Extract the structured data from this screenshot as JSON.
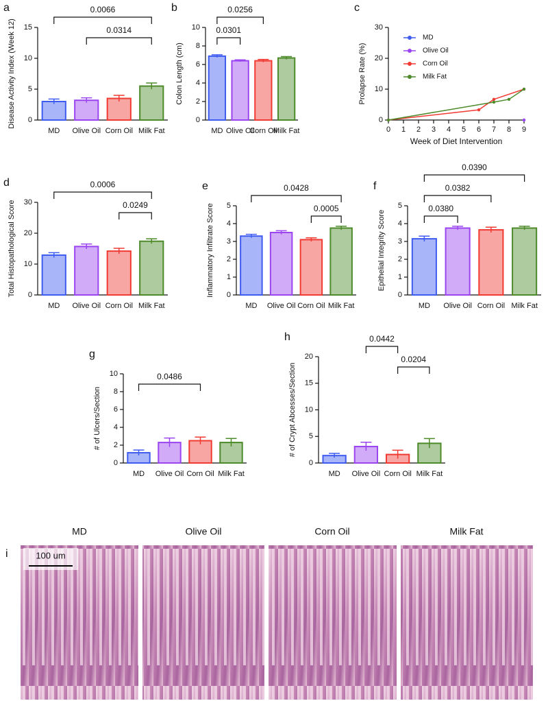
{
  "chart_data": [
    {
      "type": "bar",
      "panel": "a",
      "ylabel": "Disease Activity Index (Week 12)",
      "categories": [
        "MD",
        "Olive Oil",
        "Corn Oil",
        "Milk Fat"
      ],
      "values": [
        3.0,
        3.2,
        3.5,
        5.5
      ],
      "errors": [
        0.4,
        0.4,
        0.5,
        0.5
      ],
      "colors": [
        "#3f5cf0",
        "#9b45f0",
        "#f03a32",
        "#4c8a2a"
      ],
      "ylim": [
        0,
        15
      ],
      "yticks": [
        0,
        5,
        10,
        15
      ],
      "brackets": [
        {
          "from": 0,
          "to": 3,
          "label": "0.0066"
        },
        {
          "from": 1,
          "to": 3,
          "label": "0.0314"
        }
      ]
    },
    {
      "type": "bar",
      "panel": "b",
      "ylabel": "Colon Length (cm)",
      "categories": [
        "MD",
        "Olive Oil",
        "Corn Oil",
        "Milk Fat"
      ],
      "values": [
        6.9,
        6.4,
        6.4,
        6.7
      ],
      "errors": [
        0.15,
        0.1,
        0.15,
        0.15
      ],
      "colors": [
        "#3f5cf0",
        "#9b45f0",
        "#f03a32",
        "#4c8a2a"
      ],
      "ylim": [
        0,
        10
      ],
      "yticks": [
        0,
        2,
        4,
        6,
        8,
        10
      ],
      "brackets": [
        {
          "from": 0,
          "to": 2,
          "label": "0.0256"
        },
        {
          "from": 0,
          "to": 1,
          "label": "0.0301"
        }
      ]
    },
    {
      "type": "line",
      "panel": "c",
      "ylabel": "Prolapse Rate (%)",
      "xlabel": "Week of Diet Intervention",
      "series": [
        {
          "name": "MD",
          "color": "#3f5cf0",
          "x": [
            9
          ],
          "values": [
            0
          ]
        },
        {
          "name": "Olive Oil",
          "color": "#9b45f0",
          "x": [
            9
          ],
          "values": [
            0
          ]
        },
        {
          "name": "Corn Oil",
          "color": "#f03a32",
          "x": [
            0,
            6,
            7,
            9
          ],
          "values": [
            0,
            3.3,
            6.7,
            10
          ]
        },
        {
          "name": "Milk Fat",
          "color": "#4c8a2a",
          "x": [
            0,
            7,
            8,
            9
          ],
          "values": [
            0,
            5.8,
            6.7,
            10
          ]
        }
      ],
      "xlim": [
        0,
        9
      ],
      "xticks": [
        0,
        1,
        2,
        3,
        4,
        5,
        6,
        7,
        8,
        9
      ],
      "ylim": [
        0,
        30
      ],
      "yticks": [
        0,
        10,
        20,
        30
      ]
    },
    {
      "type": "bar",
      "panel": "d",
      "ylabel": "Total Histopathological Score",
      "categories": [
        "MD",
        "Olive Oil",
        "Corn Oil",
        "Milk Fat"
      ],
      "values": [
        12.9,
        15.7,
        14.2,
        17.4
      ],
      "errors": [
        0.8,
        0.8,
        0.9,
        0.8
      ],
      "colors": [
        "#3f5cf0",
        "#9b45f0",
        "#f03a32",
        "#4c8a2a"
      ],
      "ylim": [
        0,
        30
      ],
      "yticks": [
        0,
        10,
        20,
        30
      ],
      "brackets": [
        {
          "from": 0,
          "to": 3,
          "label": "0.0006"
        },
        {
          "from": 2,
          "to": 3,
          "label": "0.0249"
        }
      ]
    },
    {
      "type": "bar",
      "panel": "e",
      "ylabel": "Inflammatory Infiltrate Score",
      "categories": [
        "MD",
        "Olive Oil",
        "Corn Oil",
        "Milk Fat"
      ],
      "values": [
        3.3,
        3.5,
        3.1,
        3.75
      ],
      "errors": [
        0.1,
        0.1,
        0.1,
        0.1
      ],
      "colors": [
        "#3f5cf0",
        "#9b45f0",
        "#f03a32",
        "#4c8a2a"
      ],
      "ylim": [
        0,
        5
      ],
      "yticks": [
        0,
        1,
        2,
        3,
        4,
        5
      ],
      "brackets": [
        {
          "from": 0,
          "to": 3,
          "label": "0.0428"
        },
        {
          "from": 2,
          "to": 3,
          "label": "0.0005"
        }
      ]
    },
    {
      "type": "bar",
      "panel": "f",
      "ylabel": "Epithelial Integrity Score",
      "categories": [
        "MD",
        "Olive Oil",
        "Corn Oil",
        "Milk Fat"
      ],
      "values": [
        3.15,
        3.75,
        3.65,
        3.75
      ],
      "errors": [
        0.15,
        0.1,
        0.15,
        0.1
      ],
      "colors": [
        "#3f5cf0",
        "#9b45f0",
        "#f03a32",
        "#4c8a2a"
      ],
      "ylim": [
        0,
        5
      ],
      "yticks": [
        0,
        1,
        2,
        3,
        4,
        5
      ],
      "brackets": [
        {
          "from": 0,
          "to": 3,
          "label": "0.0390"
        },
        {
          "from": 0,
          "to": 2,
          "label": "0.0382"
        },
        {
          "from": 0,
          "to": 1,
          "label": "0.0380"
        }
      ]
    },
    {
      "type": "bar",
      "panel": "g",
      "ylabel": "# of Ulcers/Section",
      "categories": [
        "MD",
        "Olive Oil",
        "Corn Oil",
        "Milk Fat"
      ],
      "values": [
        1.15,
        2.3,
        2.5,
        2.3
      ],
      "errors": [
        0.3,
        0.5,
        0.4,
        0.45
      ],
      "colors": [
        "#3f5cf0",
        "#9b45f0",
        "#f03a32",
        "#4c8a2a"
      ],
      "ylim": [
        0,
        10
      ],
      "yticks": [
        0,
        2,
        4,
        6,
        8,
        10
      ],
      "brackets": [
        {
          "from": 0,
          "to": 2,
          "label": "0.0486"
        }
      ]
    },
    {
      "type": "bar",
      "panel": "h",
      "ylabel": "# of Crypt Abcesses/Section",
      "categories": [
        "MD",
        "Olive Oil",
        "Corn Oil",
        "Milk Fat"
      ],
      "values": [
        1.4,
        3.1,
        1.6,
        3.7
      ],
      "errors": [
        0.4,
        0.8,
        0.8,
        0.9
      ],
      "colors": [
        "#3f5cf0",
        "#9b45f0",
        "#f03a32",
        "#4c8a2a"
      ],
      "ylim": [
        0,
        20
      ],
      "yticks": [
        0,
        5,
        10,
        15,
        20
      ],
      "brackets": [
        {
          "from": 1,
          "to": 2,
          "label": "0.0442"
        },
        {
          "from": 2,
          "to": 3,
          "label": "0.0204"
        }
      ]
    }
  ],
  "histology": {
    "panel": "i",
    "scale_bar": "100 um",
    "titles": [
      "MD",
      "Olive Oil",
      "Corn Oil",
      "Milk Fat"
    ]
  }
}
